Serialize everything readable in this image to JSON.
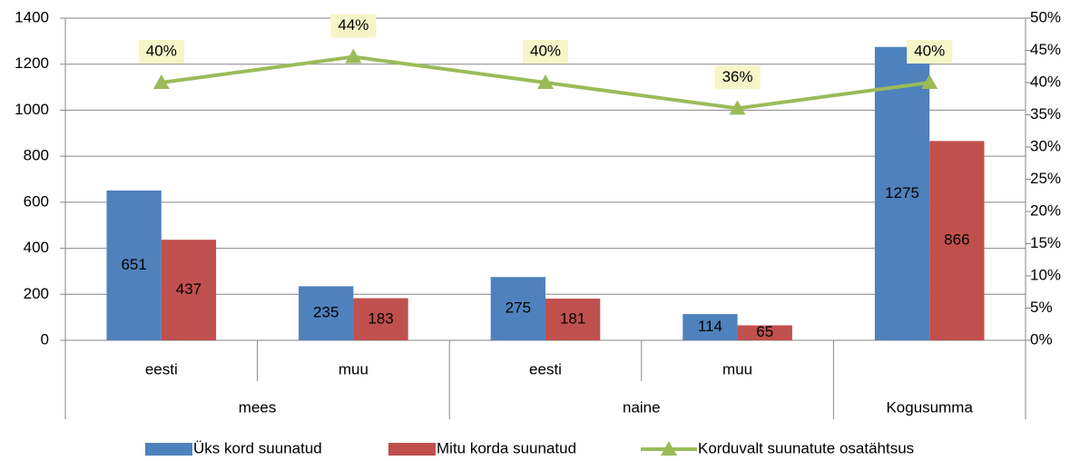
{
  "chart_data": {
    "type": "bar-line",
    "groups": [
      {
        "name": "mees",
        "categories": [
          "eesti",
          "muu"
        ]
      },
      {
        "name": "naine",
        "categories": [
          "eesti",
          "muu"
        ]
      },
      {
        "name": "Kogusumma",
        "categories": [
          null
        ]
      }
    ],
    "series": [
      {
        "name": "Üks kord suunatud",
        "type": "bar",
        "color": "#4f81bd",
        "values": [
          651,
          235,
          275,
          114,
          1275
        ]
      },
      {
        "name": "Mitu korda suunatud",
        "type": "bar",
        "color": "#c0504d",
        "values": [
          437,
          183,
          181,
          65,
          866
        ]
      },
      {
        "name": "Korduvalt suunatute osatähtsus",
        "type": "line",
        "axis": "y2",
        "color": "#9bbb59",
        "values": [
          40,
          44,
          40,
          36,
          40
        ],
        "value_labels": [
          "40%",
          "44%",
          "40%",
          "36%",
          "40%"
        ]
      }
    ],
    "ylim": [
      0,
      1400
    ],
    "yticks": [
      0,
      200,
      400,
      600,
      800,
      1000,
      1200,
      1400
    ],
    "y2lim": [
      0,
      50
    ],
    "y2ticks": [
      {
        "value": 0,
        "label": "0%"
      },
      {
        "value": 5,
        "label": "5%"
      },
      {
        "value": 10,
        "label": "10%"
      },
      {
        "value": 15,
        "label": "15%"
      },
      {
        "value": 20,
        "label": "20%"
      },
      {
        "value": 25,
        "label": "25%"
      },
      {
        "value": 30,
        "label": "30%"
      },
      {
        "value": 35,
        "label": "35%"
      },
      {
        "value": 40,
        "label": "40%"
      },
      {
        "value": 45,
        "label": "45%"
      },
      {
        "value": 50,
        "label": "50%"
      }
    ],
    "grid": true,
    "legend": "bottom"
  }
}
